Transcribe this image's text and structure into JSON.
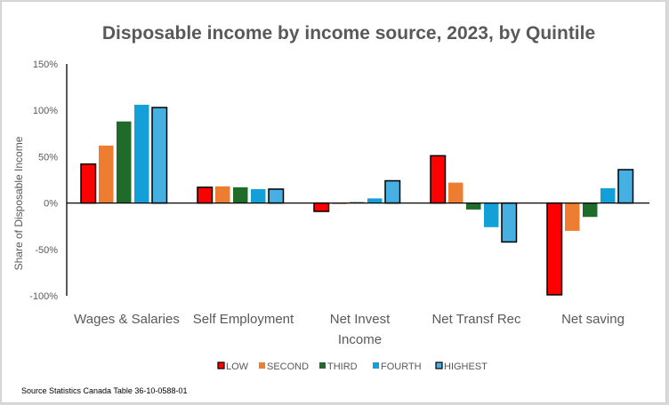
{
  "chart_data": {
    "type": "bar",
    "title": "Disposable income by income source, 2023, by Quintile",
    "xlabel": "",
    "ylabel": "Share of Disposable Income",
    "ylim": [
      -100,
      150
    ],
    "yticks": [
      150,
      100,
      50,
      0,
      -50,
      -100
    ],
    "ytick_labels": [
      "150%",
      "100%",
      "50%",
      "0%",
      "-50%",
      "-100%"
    ],
    "grid": false,
    "legend_position": "bottom",
    "categories": [
      [
        "Wages & Salaries"
      ],
      [
        "Self Employment"
      ],
      [
        "Net Invest",
        "Income"
      ],
      [
        "Net Transf Rec"
      ],
      [
        "Net saving"
      ]
    ],
    "series": [
      {
        "name": "LOW",
        "color": "#ff0000",
        "outlined": true,
        "values": [
          42,
          17,
          -9,
          51,
          -99
        ]
      },
      {
        "name": "SECOND",
        "color": "#ed7d31",
        "outlined": false,
        "values": [
          62,
          18,
          -1,
          22,
          -30
        ]
      },
      {
        "name": "THIRD",
        "color": "#1e6b2a",
        "outlined": false,
        "values": [
          88,
          17,
          1,
          -7,
          -15
        ]
      },
      {
        "name": "FOURTH",
        "color": "#13a0d8",
        "outlined": false,
        "values": [
          106,
          15,
          5,
          -26,
          16
        ]
      },
      {
        "name": "HIGHEST",
        "color": "#45b0e1",
        "outlined": true,
        "values": [
          103,
          15,
          24,
          -42,
          36
        ]
      }
    ],
    "source_note": "Source Statistics  Canada Table  36-10-0588-01"
  }
}
